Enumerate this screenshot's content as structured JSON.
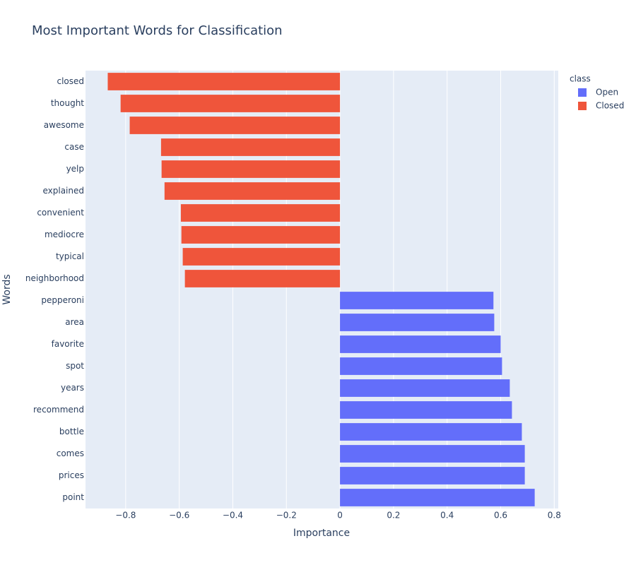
{
  "chart_data": {
    "type": "barh",
    "title": "Most Important Words for Classification",
    "x_label": "Importance",
    "y_label": "Words",
    "legend_title": "class",
    "categories": [
      "closed",
      "thought",
      "awesome",
      "case",
      "yelp",
      "explained",
      "convenient",
      "mediocre",
      "typical",
      "neighborhood",
      "pepperoni",
      "area",
      "favorite",
      "spot",
      "years",
      "recommend",
      "bottle",
      "comes",
      "prices",
      "point"
    ],
    "series": [
      {
        "name": "Open",
        "color": "#636efa",
        "values": [
          null,
          null,
          null,
          null,
          null,
          null,
          null,
          null,
          null,
          null,
          0.573,
          0.576,
          0.6,
          0.605,
          0.634,
          0.642,
          0.679,
          0.69,
          0.69,
          0.727
        ]
      },
      {
        "name": "Closed",
        "color": "#ef553b",
        "values": [
          -0.867,
          -0.819,
          -0.785,
          -0.668,
          -0.666,
          -0.655,
          -0.594,
          -0.592,
          -0.587,
          -0.579,
          null,
          null,
          null,
          null,
          null,
          null,
          null,
          null,
          null,
          null
        ]
      }
    ],
    "xlim": [
      -0.95,
      0.815
    ],
    "xticks": [
      {
        "value": -0.8,
        "label": "−0.8"
      },
      {
        "value": -0.6,
        "label": "−0.6"
      },
      {
        "value": -0.4,
        "label": "−0.4"
      },
      {
        "value": -0.2,
        "label": "−0.2"
      },
      0,
      0.2,
      0.4,
      0.6,
      0.8
    ],
    "grid": true,
    "legend_position": "right"
  }
}
